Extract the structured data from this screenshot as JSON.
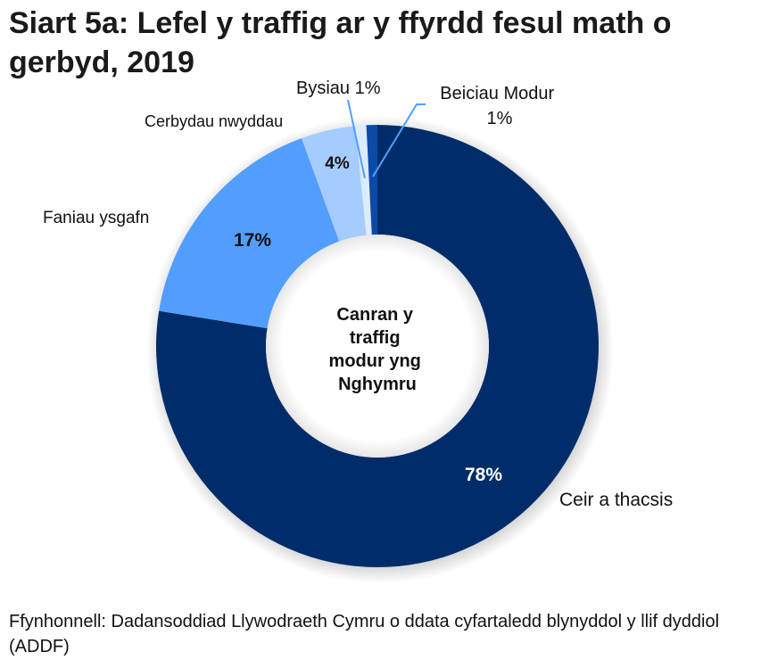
{
  "title": "Siart 5a: Lefel y traffig ar y ffyrdd fesul math o gerbyd, 2019",
  "center_label": [
    "Canran y",
    "traffig",
    "modur yng",
    "Nghymru"
  ],
  "source": "Ffynhonnell: Dadansoddiad Llywodraeth Cymru o ddata cyfartaledd blynyddol y llif dyddiol (ADDF)",
  "chart_data": {
    "type": "pie",
    "subtype": "donut",
    "title": "Siart 5a: Lefel y traffig ar y ffyrdd fesul math o gerbyd, 2019",
    "center_text": "Canran y traffig modur yng Nghymru",
    "categories": [
      "Ceir a thacsis",
      "Faniau ysgafn",
      "Cerbydau nwyddau",
      "Bysiau",
      "Beiciau Modur"
    ],
    "values": [
      78,
      17,
      4,
      1,
      1
    ],
    "data_labels": [
      "78%",
      "17%",
      "4%",
      "1%",
      "1%"
    ],
    "colors": [
      "#002D6A",
      "#529EFF",
      "#A4CCFF",
      "#DCEBFF",
      "#0B4BA7"
    ],
    "legend": "none (category labels placed next to slices)",
    "source": "Ffynhonnell: Dadansoddiad Llywodraeth Cymru o ddata cyfartaledd blynyddol y llif dyddiol (ADDF)"
  }
}
